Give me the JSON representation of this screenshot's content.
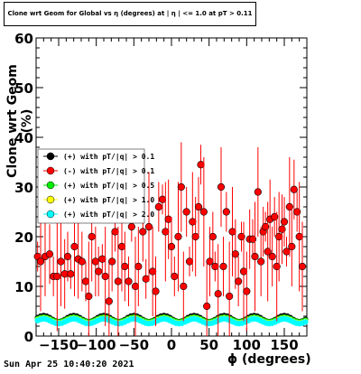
{
  "title": "Clone wrt Geom for Global vs η (degrees) at | η | <= 1.0 at pT > 0.11",
  "footer": "Sun Apr 25 10:40:20 2021",
  "chart_data": {
    "type": "scatter",
    "xlabel": "ϕ (degrees)",
    "ylabel": "Clone wrt  Geom (%)",
    "xlim": [
      -180,
      180
    ],
    "ylim": [
      0,
      60
    ],
    "xticks": [
      -150,
      -100,
      -50,
      0,
      50,
      100,
      150
    ],
    "yticks": [
      0,
      10,
      20,
      30,
      40,
      50,
      60
    ],
    "legend_position": "left-middle",
    "series": [
      {
        "name": "(+) with pT/|q| > 0.1",
        "color": "#000000",
        "kind": "band",
        "level": 3.5
      },
      {
        "name": "(-) with pT/|q| > 0.1",
        "color": "#ff0000",
        "kind": "scatter",
        "points": [
          [
            -178,
            16
          ],
          [
            -174,
            15
          ],
          [
            -168,
            16
          ],
          [
            -162,
            16.5
          ],
          [
            -157,
            12
          ],
          [
            -152,
            12
          ],
          [
            -147,
            15
          ],
          [
            -142,
            12.5
          ],
          [
            -138,
            16
          ],
          [
            -134,
            12.5
          ],
          [
            -129,
            18
          ],
          [
            -124,
            15.5
          ],
          [
            -119,
            15
          ],
          [
            -114,
            11
          ],
          [
            -110,
            8
          ],
          [
            -106,
            20
          ],
          [
            -101,
            15
          ],
          [
            -97,
            13
          ],
          [
            -92,
            15.5
          ],
          [
            -88,
            12
          ],
          [
            -83,
            7
          ],
          [
            -79,
            15
          ],
          [
            -75,
            21
          ],
          [
            -71,
            11
          ],
          [
            -66,
            18
          ],
          [
            -62,
            14
          ],
          [
            -57,
            11
          ],
          [
            -53,
            22
          ],
          [
            -48,
            10
          ],
          [
            -44,
            14
          ],
          [
            -38,
            21
          ],
          [
            -34,
            11.5
          ],
          [
            -30,
            22
          ],
          [
            -25,
            13
          ],
          [
            -21,
            9
          ],
          [
            -17,
            26
          ],
          [
            -12,
            27.5
          ],
          [
            -8,
            21
          ],
          [
            -4,
            23.5
          ],
          [
            0,
            18
          ],
          [
            4,
            12
          ],
          [
            9,
            20
          ],
          [
            13,
            30
          ],
          [
            16,
            10
          ],
          [
            20,
            25
          ],
          [
            24,
            15
          ],
          [
            28,
            23
          ],
          [
            32,
            20
          ],
          [
            36,
            26
          ],
          [
            39,
            34.5
          ],
          [
            43,
            25
          ],
          [
            47,
            6
          ],
          [
            51,
            15
          ],
          [
            55,
            20
          ],
          [
            58,
            14
          ],
          [
            62,
            8.5
          ],
          [
            66,
            30
          ],
          [
            69,
            14
          ],
          [
            73,
            25
          ],
          [
            77,
            8
          ],
          [
            81,
            21
          ],
          [
            85,
            16.5
          ],
          [
            89,
            11
          ],
          [
            93,
            20
          ],
          [
            96,
            13
          ],
          [
            100,
            9
          ],
          [
            104,
            19.5
          ],
          [
            108,
            19.5
          ],
          [
            111,
            16
          ],
          [
            115,
            29
          ],
          [
            119,
            15
          ],
          [
            122,
            21
          ],
          [
            125,
            22
          ],
          [
            128,
            17
          ],
          [
            131,
            23.5
          ],
          [
            134,
            16
          ],
          [
            137,
            24
          ],
          [
            140,
            14
          ],
          [
            143,
            20
          ],
          [
            147,
            21.5
          ],
          [
            150,
            23
          ],
          [
            153,
            17
          ],
          [
            157,
            26
          ],
          [
            160,
            18
          ],
          [
            163,
            29.5
          ],
          [
            167,
            25
          ],
          [
            170,
            20
          ],
          [
            174,
            14
          ]
        ]
      },
      {
        "name": "(+) with pT/|q| > 0.5",
        "color": "#00ee00",
        "kind": "band",
        "level": 3.3
      },
      {
        "name": "(+) with pT/|q| > 1.0",
        "color": "#ffff00",
        "kind": "band",
        "level": 3.1
      },
      {
        "name": "(+) with pT/|q| > 2.0",
        "color": "#00ffff",
        "kind": "band",
        "level": 3.0
      }
    ]
  },
  "colors": {
    "frame": "#000000",
    "grid": "#000000"
  }
}
